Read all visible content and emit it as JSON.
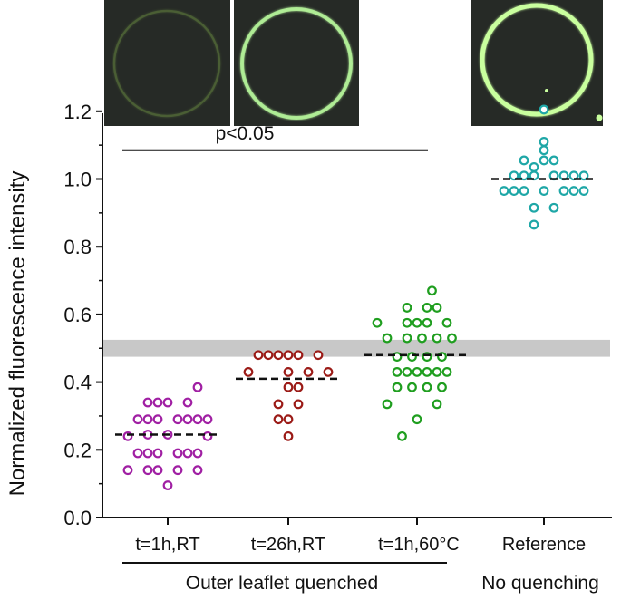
{
  "chart_data": {
    "type": "scatter",
    "ylabel": "Normalized fluorescence intensity",
    "ylim": [
      0.0,
      1.3
    ],
    "yticks": [
      "0.0",
      "0.2",
      "0.4",
      "0.6",
      "0.8",
      "1.0",
      "1.2"
    ],
    "yticks_values": [
      0.0,
      0.2,
      0.4,
      0.6,
      0.8,
      1.0,
      1.2
    ],
    "categories": [
      "t=1h,RT",
      "t=26h,RT",
      "t=1h,60°C",
      "Reference"
    ],
    "shaded_band": [
      0.475,
      0.525
    ],
    "significance": {
      "label": "p<0.05",
      "y": 1.085,
      "from_category": 0,
      "to_category": 2
    },
    "group_labels": [
      {
        "label": "Outer leaflet quenched",
        "categories": [
          0,
          1,
          2
        ]
      },
      {
        "label": "No quenching",
        "categories": [
          3
        ]
      }
    ],
    "series": [
      {
        "name": "t=1h,RT",
        "color": "#a01fa3",
        "mean": 0.245,
        "points": [
          [
            -3,
            0.29
          ],
          [
            -2,
            0.29
          ],
          [
            -1,
            0.29
          ],
          [
            1,
            0.29
          ],
          [
            2,
            0.29
          ],
          [
            3,
            0.29
          ],
          [
            4,
            0.29
          ],
          [
            -4,
            0.24
          ],
          [
            4,
            0.24
          ],
          [
            -3,
            0.19
          ],
          [
            -2,
            0.19
          ],
          [
            -1,
            0.19
          ],
          [
            1,
            0.19
          ],
          [
            2,
            0.19
          ],
          [
            3,
            0.19
          ],
          [
            -4,
            0.14
          ],
          [
            -2,
            0.14
          ],
          [
            -1,
            0.14
          ],
          [
            1,
            0.14
          ],
          [
            3,
            0.14
          ],
          [
            -2,
            0.34
          ],
          [
            -1,
            0.34
          ],
          [
            0,
            0.34
          ],
          [
            2,
            0.34
          ],
          [
            3,
            0.385
          ],
          [
            -2,
            0.245
          ],
          [
            0,
            0.245
          ],
          [
            0,
            0.095
          ]
        ]
      },
      {
        "name": "t=26h,RT",
        "color": "#9b1b17",
        "mean": 0.41,
        "points": [
          [
            -3,
            0.48
          ],
          [
            -2,
            0.48
          ],
          [
            -1,
            0.48
          ],
          [
            0,
            0.48
          ],
          [
            1,
            0.48
          ],
          [
            3,
            0.48
          ],
          [
            -4,
            0.43
          ],
          [
            0,
            0.43
          ],
          [
            2,
            0.43
          ],
          [
            4,
            0.43
          ],
          [
            0,
            0.385
          ],
          [
            1,
            0.385
          ],
          [
            -1,
            0.335
          ],
          [
            1,
            0.335
          ],
          [
            -1,
            0.29
          ],
          [
            0,
            0.29
          ],
          [
            0,
            0.24
          ]
        ]
      },
      {
        "name": "t=1h,60°C",
        "color": "#1f9e1f",
        "mean": 0.48,
        "points": [
          [
            -4,
            0.575
          ],
          [
            -1,
            0.575
          ],
          [
            0,
            0.575
          ],
          [
            1,
            0.575
          ],
          [
            3,
            0.575
          ],
          [
            -3,
            0.53
          ],
          [
            -1,
            0.53
          ],
          [
            0.5,
            0.53
          ],
          [
            2,
            0.53
          ],
          [
            3.5,
            0.53
          ],
          [
            -2,
            0.475
          ],
          [
            -0.5,
            0.475
          ],
          [
            1,
            0.475
          ],
          [
            2.5,
            0.475
          ],
          [
            -2,
            0.43
          ],
          [
            -1,
            0.43
          ],
          [
            0,
            0.43
          ],
          [
            1,
            0.43
          ],
          [
            2,
            0.43
          ],
          [
            3,
            0.43
          ],
          [
            -2,
            0.385
          ],
          [
            -0.5,
            0.385
          ],
          [
            1,
            0.385
          ],
          [
            2.5,
            0.385
          ],
          [
            -3,
            0.335
          ],
          [
            2,
            0.335
          ],
          [
            -1,
            0.62
          ],
          [
            1,
            0.62
          ],
          [
            2,
            0.62
          ],
          [
            0,
            0.29
          ],
          [
            1.5,
            0.67
          ],
          [
            -1.5,
            0.24
          ]
        ]
      },
      {
        "name": "Reference",
        "color": "#1fa7a7",
        "mean": 1.0,
        "points": [
          [
            -3,
            1.01
          ],
          [
            -2,
            1.01
          ],
          [
            -1,
            1.01
          ],
          [
            1,
            1.01
          ],
          [
            2,
            1.01
          ],
          [
            3,
            1.01
          ],
          [
            4,
            1.01
          ],
          [
            -4,
            0.965
          ],
          [
            -3,
            0.965
          ],
          [
            -2,
            0.965
          ],
          [
            0,
            0.965
          ],
          [
            2,
            0.965
          ],
          [
            3,
            0.965
          ],
          [
            4,
            0.965
          ],
          [
            -2,
            1.055
          ],
          [
            0,
            1.055
          ],
          [
            1,
            1.055
          ],
          [
            -1,
            0.915
          ],
          [
            1,
            0.915
          ],
          [
            0,
            1.11
          ],
          [
            0,
            1.085
          ],
          [
            0,
            1.205
          ],
          [
            -1,
            0.865
          ],
          [
            -1,
            1.035
          ]
        ]
      }
    ]
  },
  "insets": [
    {
      "name": "t=1h,RT",
      "brightness": 0.28,
      "ring_color": "#7fa94a"
    },
    {
      "name": "t=26h,RT",
      "brightness": 0.85,
      "ring_color": "#b5f59a"
    },
    {
      "name": "Reference",
      "brightness": 1.0,
      "ring_color": "#c9ff9e"
    }
  ]
}
